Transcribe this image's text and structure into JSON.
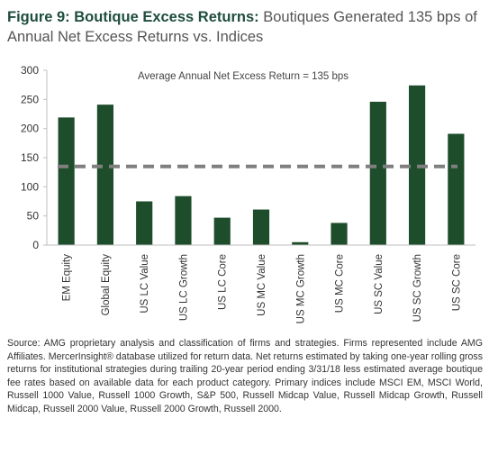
{
  "title": {
    "figure_label": "Figure 9: Boutique Excess Returns:",
    "subtitle": "Boutiques Generated 135 bps of Annual Net Excess Returns vs. Indices"
  },
  "chart_data": {
    "type": "bar",
    "categories": [
      "EM Equity",
      "Global Equity",
      "US LC Value",
      "US LC Growth",
      "US LC Core",
      "US MC Value",
      "US MC Growth",
      "US MC Core",
      "US SC Value",
      "US SC Growth",
      "US SC Core"
    ],
    "values": [
      219,
      241,
      75,
      84,
      47,
      61,
      5,
      38,
      246,
      274,
      191
    ],
    "ylim": [
      0,
      300
    ],
    "yticks": [
      0,
      50,
      100,
      150,
      200,
      250,
      300
    ],
    "reference_line": {
      "value": 135,
      "label": "Average Annual Net Excess Return = 135 bps"
    },
    "grid": false,
    "colors": {
      "bar": "#1e4d2b",
      "reference": "#7f7f7f",
      "axis": "#bfbfbf"
    }
  },
  "footer": {
    "source": "Source: AMG proprietary analysis and classification of firms and strategies. Firms represented include AMG Affiliates. MercerInsight® database utilized for return data. Net returns estimated by taking one-year rolling gross returns for institutional strategies during trailing 20-year period ending 3/31/18 less estimated average boutique fee rates based on available data for each product category. Primary indices include MSCI EM, MSCI World, Russell 1000 Value, Russell 1000 Growth, S&P 500, Russell Midcap Value, Russell Midcap Growth, Russell Midcap, Russell 2000 Value, Russell 2000 Growth, Russell 2000."
  }
}
